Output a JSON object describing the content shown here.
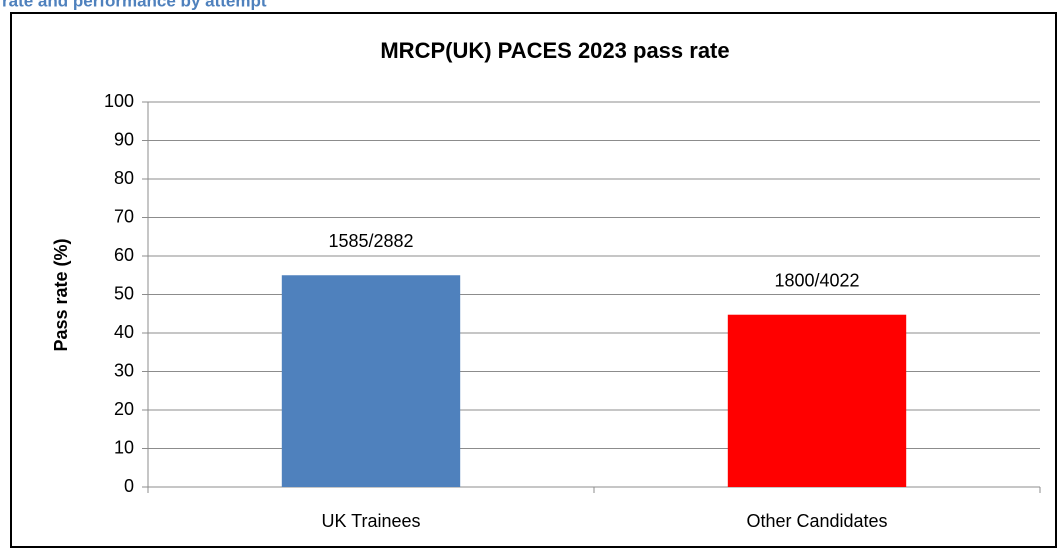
{
  "heading": "rate and performance by attempt",
  "chart_data": {
    "type": "bar",
    "title": "MRCP(UK) PACES 2023 pass rate",
    "ylabel": "Pass rate (%)",
    "categories": [
      "UK Trainees",
      "Other Candidates"
    ],
    "values": [
      55.0,
      44.75
    ],
    "value_labels": [
      "1585/2882",
      "1800/4022"
    ],
    "colors": [
      "#4f81bd",
      "#ff0000"
    ],
    "ylim": [
      0,
      100
    ],
    "yticks": [
      0,
      10,
      20,
      30,
      40,
      50,
      60,
      70,
      80,
      90,
      100
    ],
    "grid": true
  }
}
